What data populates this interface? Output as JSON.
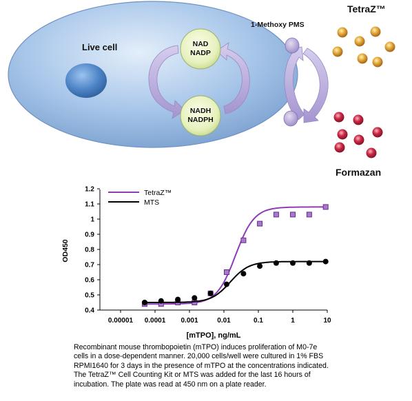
{
  "diagram": {
    "live_cell_label": "Live cell",
    "nad_label": [
      "NAD",
      "NADP"
    ],
    "nadh_label": [
      "NADH",
      "NADPH"
    ],
    "mediator_label": "1-Methoxy PMS",
    "tetraz_label": "TetraZ™",
    "formazan_label": "Formazan",
    "colors": {
      "cell": "#9fc0e6",
      "nucleus": "#4a7fc0",
      "cofactor": "#e6f2b8",
      "arrow": "#b3a3d6",
      "mediator": "#b8a8d8",
      "tetraz_bead": "#d9a03a",
      "formazan_bead": "#c42a43"
    }
  },
  "chart_data": {
    "type": "line",
    "xscale": "log",
    "xlabel": "[mTPO], ng/mL",
    "ylabel": "OD450",
    "xticks": [
      "0.00001",
      "0.0001",
      "0.001",
      "0.01",
      "0.1",
      "1",
      "10"
    ],
    "yticks": [
      "0.4",
      "0.5",
      "0.6",
      "0.7",
      "0.8",
      "0.9",
      "1",
      "1.1",
      "1.2"
    ],
    "ylim": [
      0.4,
      1.2
    ],
    "xlim": [
      1e-05,
      10
    ],
    "legend_position": "top-left",
    "series": [
      {
        "name": "TetraZ™",
        "color": "#8e3bb7",
        "marker": "square",
        "x": [
          5e-05,
          0.00015,
          0.00046,
          0.0014,
          0.0041,
          0.012,
          0.037,
          0.11,
          0.33,
          1,
          3,
          9
        ],
        "y": [
          0.44,
          0.44,
          0.45,
          0.45,
          0.51,
          0.65,
          0.86,
          0.97,
          1.03,
          1.03,
          1.03,
          1.08
        ]
      },
      {
        "name": "MTS",
        "color": "#000000",
        "marker": "circle",
        "x": [
          5e-05,
          0.00015,
          0.00046,
          0.0014,
          0.0041,
          0.012,
          0.037,
          0.11,
          0.33,
          1,
          3,
          9
        ],
        "y": [
          0.45,
          0.46,
          0.47,
          0.48,
          0.51,
          0.57,
          0.64,
          0.69,
          0.71,
          0.71,
          0.71,
          0.72
        ]
      }
    ]
  },
  "caption": [
    "Recombinant mouse thrombopoietin (mTPO) induces proliferation of M0-7e",
    "cells in a dose-dependent manner.  20,000 cells/well were cultured in 1% FBS",
    "RPMI1640 for 3 days in the presence of mTPO  at the concentrations indicated.",
    "The TetraZ™ Cell Counting Kit or MTS was added for the last 16 hours of",
    "incubation. The plate was read at 450 nm on a plate reader."
  ]
}
